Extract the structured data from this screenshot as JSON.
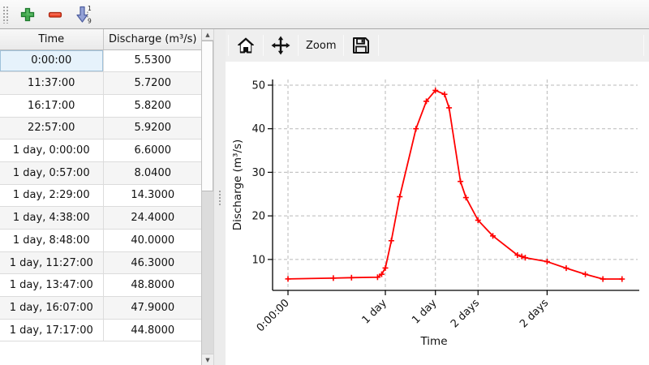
{
  "toolbar": {
    "add_icon": "green-plus",
    "remove_icon": "red-minus",
    "sort_icon": "blue-arrow-down-numeric",
    "sort_top_digit": "1",
    "sort_bottom_digit": "9"
  },
  "table": {
    "columns": [
      "Time",
      "Discharge (m³/s)"
    ],
    "rows": [
      [
        "0:00:00",
        "5.5300"
      ],
      [
        "11:37:00",
        "5.7200"
      ],
      [
        "16:17:00",
        "5.8200"
      ],
      [
        "22:57:00",
        "5.9200"
      ],
      [
        "1 day, 0:00:00",
        "6.6000"
      ],
      [
        "1 day, 0:57:00",
        "8.0400"
      ],
      [
        "1 day, 2:29:00",
        "14.3000"
      ],
      [
        "1 day, 4:38:00",
        "24.4000"
      ],
      [
        "1 day, 8:48:00",
        "40.0000"
      ],
      [
        "1 day, 11:27:00",
        "46.3000"
      ],
      [
        "1 day, 13:47:00",
        "48.8000"
      ],
      [
        "1 day, 16:07:00",
        "47.9000"
      ],
      [
        "1 day, 17:17:00",
        "44.8000"
      ]
    ],
    "selected_cell": {
      "row": 0,
      "col": 0,
      "value": "0:00:00"
    }
  },
  "scrollbar": {
    "up": "▲",
    "down": "▼"
  },
  "chart_toolbar": {
    "home_icon": "home",
    "pan_icon": "pan-move-arrows",
    "zoom_label": "Zoom",
    "save_icon": "save-floppy"
  },
  "chart_data": {
    "type": "line",
    "title": "",
    "xlabel": "Time",
    "ylabel": "Discharge (m³/s)",
    "grid": true,
    "grid_style": "dashed-gray",
    "line_color": "#ff0000",
    "marker": "+",
    "xlim_hours": [
      -3.95,
      89.6
    ],
    "ylim": [
      2.9,
      51.3
    ],
    "y_ticks": [
      10,
      20,
      30,
      40,
      50
    ],
    "x_ticks": {
      "hours": [
        0,
        24.95,
        37.78,
        48.7,
        66.4
      ],
      "labels": [
        "0:00:00",
        "1 day",
        "1 day",
        "2 days",
        "2 days"
      ]
    },
    "series": [
      {
        "name": "Discharge",
        "points_hours_value": [
          [
            0.0,
            5.53
          ],
          [
            11.62,
            5.72
          ],
          [
            16.28,
            5.82
          ],
          [
            22.95,
            5.92
          ],
          [
            24.0,
            6.6
          ],
          [
            24.95,
            8.04
          ],
          [
            26.48,
            14.3
          ],
          [
            28.63,
            24.4
          ],
          [
            32.8,
            40.0
          ],
          [
            35.45,
            46.3
          ],
          [
            37.78,
            48.8
          ],
          [
            40.12,
            47.9
          ],
          [
            41.28,
            44.8
          ],
          [
            44.2,
            27.9
          ],
          [
            45.6,
            24.2
          ],
          [
            48.7,
            19.0
          ],
          [
            52.5,
            15.4
          ],
          [
            58.8,
            11.0
          ],
          [
            59.9,
            10.7
          ],
          [
            60.8,
            10.4
          ],
          [
            66.4,
            9.5
          ],
          [
            71.3,
            8.0
          ],
          [
            76.2,
            6.6
          ],
          [
            80.7,
            5.5
          ],
          [
            85.6,
            5.5
          ]
        ]
      }
    ]
  }
}
